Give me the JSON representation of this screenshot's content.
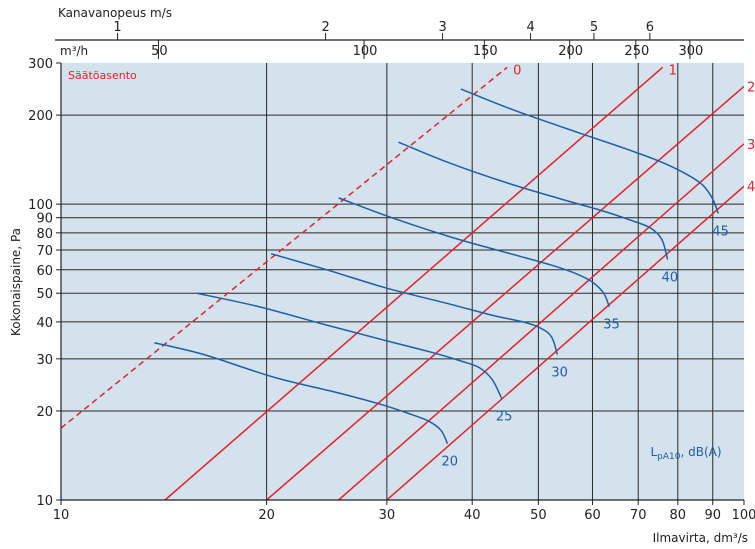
{
  "chart_data": {
    "type": "line",
    "title": "",
    "xlabel": "Ilmavirta, dm³/s",
    "ylabel": "Kokonaispaine, Pa",
    "xscale": "log",
    "yscale": "log",
    "xlim": [
      10,
      100
    ],
    "ylim": [
      10,
      300
    ],
    "grid": true,
    "x_ticks": [
      {
        "v": 10,
        "label": "10"
      },
      {
        "v": 20,
        "label": "20"
      },
      {
        "v": 30,
        "label": "30"
      },
      {
        "v": 40,
        "label": "40"
      },
      {
        "v": 50,
        "label": "50"
      },
      {
        "v": 60,
        "label": "60"
      },
      {
        "v": 70,
        "label": "70"
      },
      {
        "v": 80,
        "label": "80"
      },
      {
        "v": 90,
        "label": "90"
      },
      {
        "v": 100,
        "label": "100"
      }
    ],
    "y_ticks": [
      {
        "v": 10,
        "label": "10"
      },
      {
        "v": 20,
        "label": "20"
      },
      {
        "v": 30,
        "label": "30"
      },
      {
        "v": 40,
        "label": "40"
      },
      {
        "v": 50,
        "label": "50"
      },
      {
        "v": 60,
        "label": "60"
      },
      {
        "v": 70,
        "label": "70"
      },
      {
        "v": 80,
        "label": "80"
      },
      {
        "v": 90,
        "label": "90"
      },
      {
        "v": 100,
        "label": "100"
      },
      {
        "v": 200,
        "label": "200"
      },
      {
        "v": 300,
        "label": "300"
      }
    ],
    "top_axis_m3h": {
      "unit": "m³/h",
      "ticks": [
        {
          "v": 50,
          "label": "50"
        },
        {
          "v": 100,
          "label": "100"
        },
        {
          "v": 150,
          "label": "150"
        },
        {
          "v": 200,
          "label": "200"
        },
        {
          "v": 250,
          "label": "250"
        },
        {
          "v": 300,
          "label": "300"
        }
      ]
    },
    "top_axis_velocity": {
      "label": "Kanavanopeus m/s",
      "ticks": [
        {
          "v": 1,
          "label": "1",
          "flow": 12.1
        },
        {
          "v": 2,
          "label": "2",
          "flow": 24.4
        },
        {
          "v": 3,
          "label": "3",
          "flow": 36.2
        },
        {
          "v": 4,
          "label": "4",
          "flow": 48.7
        },
        {
          "v": 5,
          "label": "5",
          "flow": 60.3
        },
        {
          "v": 6,
          "label": "6",
          "flow": 72.8
        }
      ]
    },
    "color_settings": "#e8202a",
    "color_sound": "#1f5fa6",
    "settings_label": "Säätöasento",
    "damper_settings": [
      {
        "name": "0",
        "label": "0",
        "dashed": true,
        "x": [
          10,
          45
        ],
        "y": [
          17.5,
          290
        ]
      },
      {
        "name": "1",
        "label": "1",
        "dashed": false,
        "x": [
          14.2,
          76
        ],
        "y": [
          10,
          290
        ]
      },
      {
        "name": "2",
        "label": "2",
        "dashed": false,
        "x": [
          20,
          100
        ],
        "y": [
          10,
          250
        ]
      },
      {
        "name": "3",
        "label": "3",
        "dashed": false,
        "x": [
          25.5,
          100
        ],
        "y": [
          10,
          160
        ]
      },
      {
        "name": "4",
        "label": "4",
        "dashed": false,
        "x": [
          30,
          100
        ],
        "y": [
          10,
          115
        ]
      }
    ],
    "sound_unit": "L",
    "sound_unit_sub": "pA10",
    "sound_unit_rest": ", dB(A)",
    "sound_levels": [
      {
        "name": "20",
        "label": "20",
        "x": [
          13.7,
          16.2,
          20.5,
          25.5,
          29.5,
          32.5,
          34.5,
          36.0,
          36.8
        ],
        "y": [
          34,
          31,
          26,
          23,
          21,
          19.5,
          18.5,
          17.2,
          15.5
        ]
      },
      {
        "name": "25",
        "label": "25",
        "x": [
          15.8,
          19.5,
          24.5,
          30.0,
          35.0,
          38.5,
          41.0,
          42.8,
          44.2
        ],
        "y": [
          50,
          45,
          39,
          34.5,
          31.5,
          29.5,
          28.0,
          25.5,
          22
        ]
      },
      {
        "name": "30",
        "label": "30",
        "x": [
          20.3,
          24.5,
          30.0,
          37.0,
          43.0,
          47.5,
          50.5,
          52.3,
          53.3
        ],
        "y": [
          68,
          60,
          52,
          46,
          42,
          40,
          38.0,
          35.5,
          31
        ]
      },
      {
        "name": "35",
        "label": "35",
        "x": [
          25.5,
          30.5,
          37.5,
          45.5,
          52.5,
          57.0,
          60.0,
          62.3,
          63.5
        ],
        "y": [
          105,
          90,
          77,
          68,
          62,
          58,
          54.5,
          50.0,
          45
        ]
      },
      {
        "name": "40",
        "label": "40",
        "x": [
          31.2,
          37.0,
          45.0,
          54.0,
          62.0,
          68.5,
          73.0,
          75.8,
          77.3
        ],
        "y": [
          162,
          138,
          118,
          104,
          95,
          88,
          83,
          76,
          65
        ]
      },
      {
        "name": "45",
        "label": "45",
        "x": [
          38.5,
          45.5,
          55.0,
          66.0,
          75.0,
          82.0,
          87.0,
          90.0,
          91.7
        ],
        "y": [
          245,
          210,
          180,
          156,
          140,
          127,
          116,
          104,
          93
        ]
      }
    ]
  }
}
